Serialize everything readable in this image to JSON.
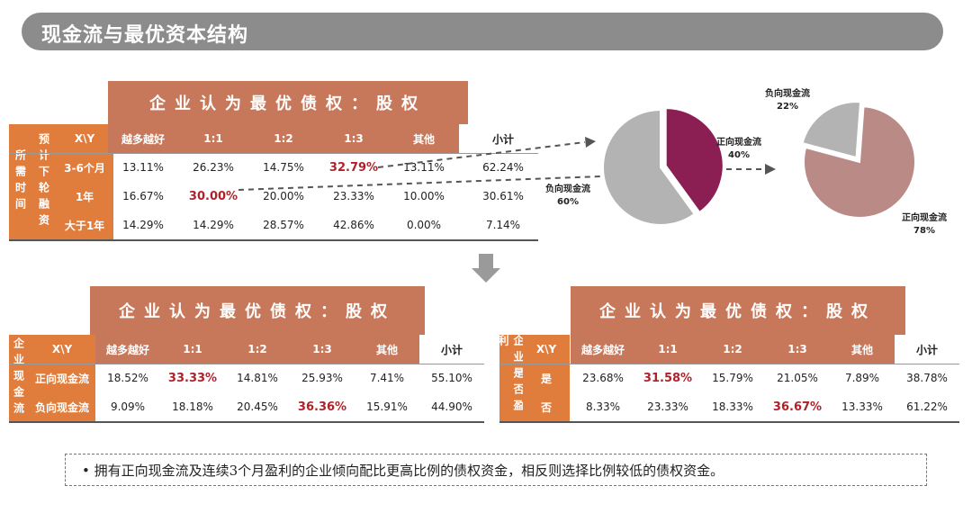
{
  "title": "现金流与最优资本结构",
  "header_text": "企业认为最优债权：股权",
  "col_labels": [
    "越多越好",
    "1:1",
    "1:2",
    "1:3",
    "其他",
    "小计"
  ],
  "table1": {
    "side_label": "所需时间",
    "side_label2": "预计下轮融资",
    "corner": "X\\Y",
    "rows": [
      {
        "label": "3-6个月",
        "values": [
          "13.11%",
          "26.23%",
          "14.75%",
          "32.79%",
          "13.11%",
          "62.24%"
        ],
        "highlight": 3
      },
      {
        "label": "1年",
        "values": [
          "16.67%",
          "30.00%",
          "20.00%",
          "23.33%",
          "10.00%",
          "30.61%"
        ],
        "highlight": 1
      },
      {
        "label": "大于1年",
        "values": [
          "14.29%",
          "14.29%",
          "28.57%",
          "42.86%",
          "0.00%",
          "7.14%"
        ],
        "highlight": -1
      }
    ]
  },
  "table2": {
    "side_label": "企业现金流",
    "corner": "X\\Y",
    "rows": [
      {
        "label": "正向现金流",
        "values": [
          "18.52%",
          "33.33%",
          "14.81%",
          "25.93%",
          "7.41%",
          "55.10%"
        ],
        "highlight": 1
      },
      {
        "label": "负向现金流",
        "values": [
          "9.09%",
          "18.18%",
          "20.45%",
          "36.36%",
          "15.91%",
          "44.90%"
        ],
        "highlight": 3
      }
    ]
  },
  "table3": {
    "side_label": "企业是否盈利",
    "corner": "X\\Y",
    "rows": [
      {
        "label": "是",
        "values": [
          "23.68%",
          "31.58%",
          "15.79%",
          "21.05%",
          "7.89%",
          "38.78%"
        ],
        "highlight": 1
      },
      {
        "label": "否",
        "values": [
          "8.33%",
          "23.33%",
          "18.33%",
          "36.67%",
          "13.33%",
          "61.22%"
        ],
        "highlight": 3
      }
    ]
  },
  "chart_data": [
    {
      "type": "pie",
      "slices": [
        {
          "label": "正向现金流",
          "value": 40
        },
        {
          "label": "负向现金流",
          "value": 60
        }
      ],
      "labels_text": {
        "pos": "正向现金流",
        "pos_pct": "40%",
        "neg": "负向现金流",
        "neg_pct": "60%"
      },
      "colors": [
        "#8b1e52",
        "#b3b3b3"
      ]
    },
    {
      "type": "pie",
      "slices": [
        {
          "label": "负向现金流",
          "value": 22
        },
        {
          "label": "正向现金流",
          "value": 78
        }
      ],
      "labels_text": {
        "neg": "负向现金流",
        "neg_pct": "22%",
        "pos": "正向现金流",
        "pos_pct": "78%"
      },
      "colors": [
        "#b3b3b3",
        "#b98a86"
      ]
    }
  ],
  "note": "•  拥有正向现金流及连续3个月盈利的企业倾向配比更高比例的债权资金，相反则选择比例较低的债权资金。",
  "colors": {
    "header": "#c8785a",
    "side": "#e07c3c",
    "highlight": "#b0222a",
    "titlebar": "#8c8c8c"
  }
}
